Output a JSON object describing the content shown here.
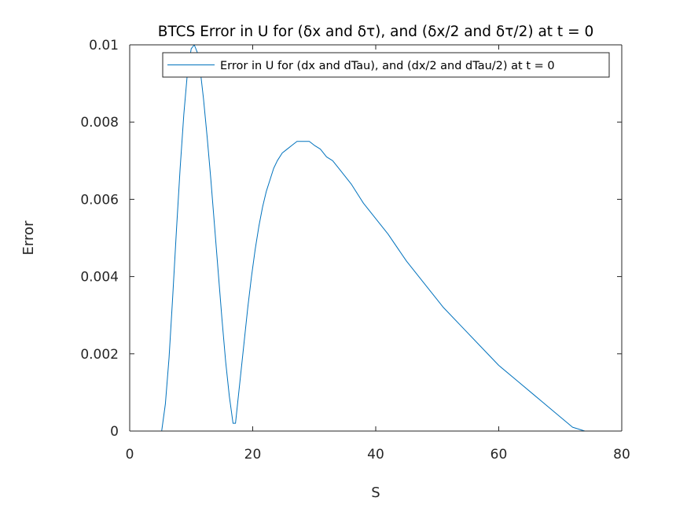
{
  "chart_data": {
    "type": "line",
    "title": "BTCS Error in U for (δx and δτ), and (δx/2 and δτ/2) at t = 0",
    "xlabel": "S",
    "ylabel": "Error",
    "xlim": [
      0,
      80
    ],
    "ylim": [
      0,
      0.01
    ],
    "xticks": [
      0,
      20,
      40,
      60,
      80
    ],
    "xtick_labels": [
      "0",
      "20",
      "40",
      "60",
      "80"
    ],
    "yticks": [
      0,
      0.002,
      0.004,
      0.006,
      0.008,
      0.01
    ],
    "ytick_labels": [
      "0",
      "0.002",
      "0.004",
      "0.006",
      "0.008",
      "0.01"
    ],
    "grid": false,
    "legend_position": "top-right",
    "line_color": "#0072BD",
    "series": [
      {
        "name": "Error in U for (dx and dTau), and (dx/2 and dTau/2) at t = 0",
        "x": [
          0,
          2,
          4,
          5.2,
          5.8,
          6.4,
          7.0,
          7.6,
          8.2,
          8.8,
          9.4,
          10.0,
          10.5,
          11.0,
          11.5,
          12.0,
          12.6,
          13.2,
          13.8,
          14.4,
          15.0,
          15.6,
          16.2,
          16.8,
          17.2,
          17.6,
          18.0,
          18.6,
          19.2,
          19.8,
          20.4,
          21.0,
          21.6,
          22.2,
          22.8,
          23.4,
          24.0,
          24.8,
          25.6,
          26.4,
          27.2,
          28.0,
          28.6,
          29.2,
          30.0,
          31.0,
          32.0,
          33.0,
          34.0,
          36.0,
          38.0,
          40.0,
          42.0,
          45.0,
          48.0,
          51.0,
          54.0,
          57.0,
          60.0,
          63.0,
          66.0,
          69.0,
          72.0,
          74.0
        ],
        "y": [
          0,
          0,
          0,
          0,
          0.0007,
          0.0019,
          0.0035,
          0.0052,
          0.0068,
          0.0082,
          0.0093,
          0.0099,
          0.01,
          0.0098,
          0.0093,
          0.0086,
          0.0076,
          0.0065,
          0.0053,
          0.0041,
          0.0029,
          0.0018,
          0.0009,
          0.0002,
          0.0002,
          0.0008,
          0.0014,
          0.0023,
          0.0032,
          0.004,
          0.0047,
          0.0053,
          0.0058,
          0.0062,
          0.0065,
          0.0068,
          0.007,
          0.0072,
          0.0073,
          0.0074,
          0.0075,
          0.0075,
          0.0075,
          0.0075,
          0.0074,
          0.0073,
          0.0071,
          0.007,
          0.0068,
          0.0064,
          0.0059,
          0.0055,
          0.0051,
          0.0044,
          0.0038,
          0.0032,
          0.0027,
          0.0022,
          0.0017,
          0.0013,
          0.0009,
          0.0005,
          0.0001,
          0
        ]
      }
    ]
  }
}
